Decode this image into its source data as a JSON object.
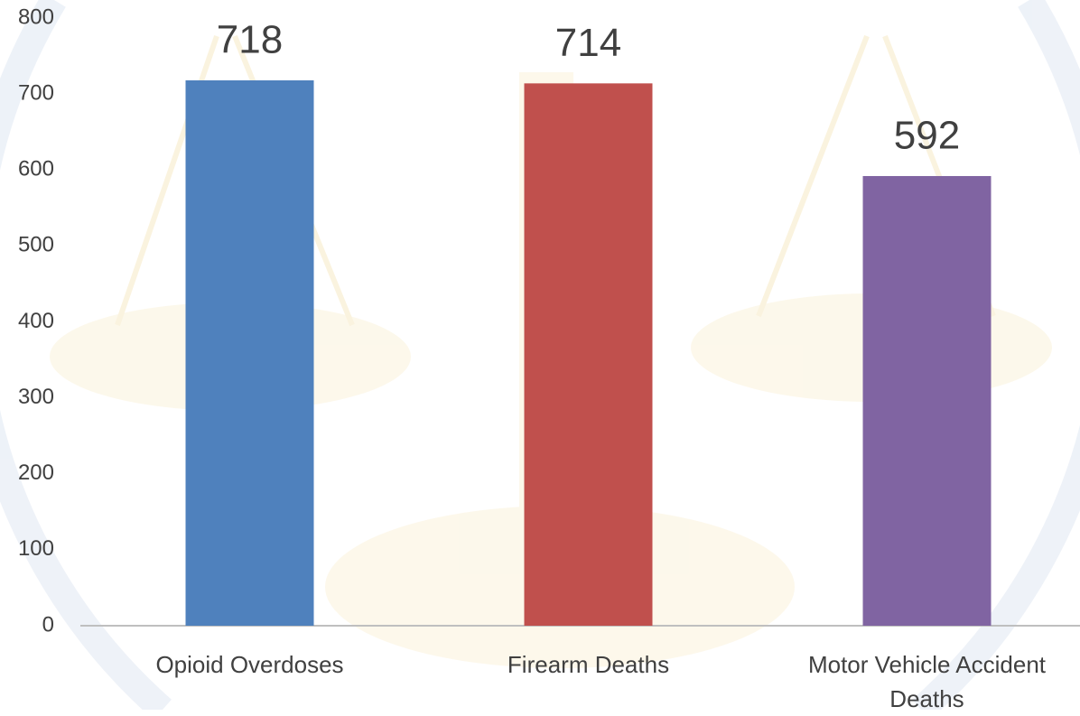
{
  "chart_data": {
    "type": "bar",
    "categories": [
      "Opioid Overdoses",
      "Firearm Deaths",
      "Motor Vehicle Accident Deaths"
    ],
    "values": [
      718,
      714,
      592
    ],
    "colors": [
      "#4f81bd",
      "#c0504d",
      "#8064a2"
    ],
    "ylim": [
      0,
      800
    ],
    "yticks": [
      0,
      100,
      200,
      300,
      400,
      500,
      600,
      700,
      800
    ],
    "grid": false
  }
}
